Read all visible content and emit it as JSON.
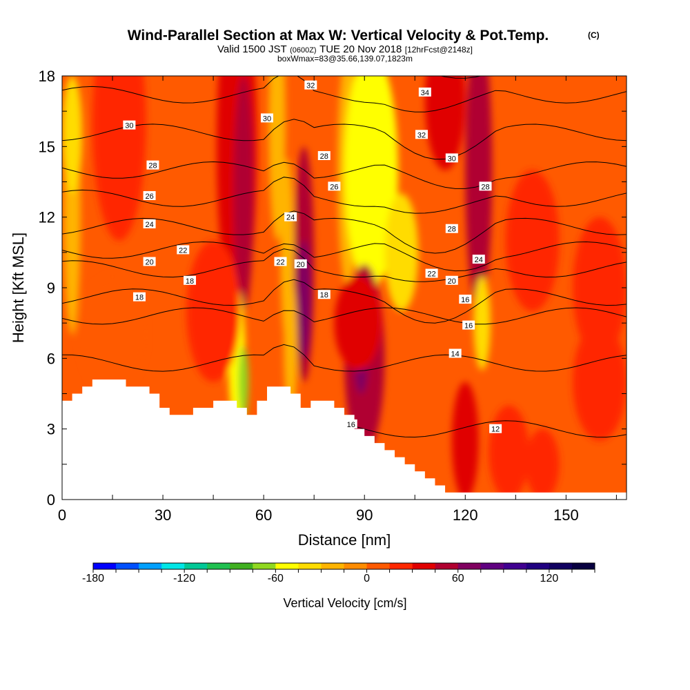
{
  "title": {
    "main": "Wind-Parallel Section at Max W: Vertical Velocity & Pot.Temp.",
    "copyright": "(C)",
    "valid_prefix": "Valid 1500 JST",
    "valid_utc": "(0600Z)",
    "valid_date": "TUE 20 Nov 2018",
    "valid_fcst": "[12hrFcst@2148z]",
    "box_info": "boxWmax=83@35.66,139.07,1823m"
  },
  "chart_data": {
    "type": "heatmap",
    "description_note": "",
    "xlabel": "Distance [nm]",
    "ylabel": "Height [Kft MSL]",
    "xlim": [
      0,
      168
    ],
    "ylim": [
      0,
      18
    ],
    "xticks": [
      0,
      30,
      60,
      90,
      120,
      150
    ],
    "yticks": [
      0,
      3,
      6,
      9,
      12,
      15,
      18
    ],
    "colorbar": {
      "label": "Vertical Velocity [cm/s]",
      "min": -180,
      "max": 150,
      "step": 15,
      "tick_labels": [
        -180,
        -120,
        -60,
        0,
        60,
        120
      ],
      "colors": [
        "#0000ff",
        "#0050ff",
        "#00a0ff",
        "#00e6e6",
        "#00c896",
        "#20c050",
        "#40b020",
        "#90d820",
        "#ffff00",
        "#ffdc00",
        "#ffb400",
        "#ff8c00",
        "#ff5a00",
        "#ff2800",
        "#e00000",
        "#b00030",
        "#800060",
        "#600080",
        "#400090",
        "#200080",
        "#100060",
        "#080040"
      ]
    },
    "terrain_kft": [
      [
        0,
        4.2
      ],
      [
        3,
        4.2
      ],
      [
        3,
        4.5
      ],
      [
        6,
        4.5
      ],
      [
        6,
        4.8
      ],
      [
        9,
        4.8
      ],
      [
        9,
        5.1
      ],
      [
        19,
        5.1
      ],
      [
        19,
        4.8
      ],
      [
        26,
        4.8
      ],
      [
        26,
        4.5
      ],
      [
        29,
        4.5
      ],
      [
        29,
        3.9
      ],
      [
        32,
        3.9
      ],
      [
        32,
        3.6
      ],
      [
        39,
        3.6
      ],
      [
        39,
        3.9
      ],
      [
        45,
        3.9
      ],
      [
        45,
        4.2
      ],
      [
        52,
        4.2
      ],
      [
        52,
        3.9
      ],
      [
        55,
        3.9
      ],
      [
        55,
        3.6
      ],
      [
        58,
        3.6
      ],
      [
        58,
        4.2
      ],
      [
        61,
        4.2
      ],
      [
        61,
        4.8
      ],
      [
        68,
        4.8
      ],
      [
        68,
        4.5
      ],
      [
        71,
        4.5
      ],
      [
        71,
        3.9
      ],
      [
        74,
        3.9
      ],
      [
        74,
        4.2
      ],
      [
        81,
        4.2
      ],
      [
        81,
        3.9
      ],
      [
        84,
        3.9
      ],
      [
        84,
        3.6
      ],
      [
        87,
        3.6
      ],
      [
        87,
        3.0
      ],
      [
        90,
        3.0
      ],
      [
        90,
        2.7
      ],
      [
        93,
        2.7
      ],
      [
        93,
        2.4
      ],
      [
        96,
        2.4
      ],
      [
        96,
        2.1
      ],
      [
        99,
        2.1
      ],
      [
        99,
        1.8
      ],
      [
        102,
        1.8
      ],
      [
        102,
        1.5
      ],
      [
        105,
        1.5
      ],
      [
        105,
        1.2
      ],
      [
        108,
        1.2
      ],
      [
        108,
        0.9
      ],
      [
        111,
        0.9
      ],
      [
        111,
        0.6
      ],
      [
        114,
        0.6
      ],
      [
        114,
        0.3
      ],
      [
        168,
        0.3
      ]
    ],
    "vertical_velocity_cells": [
      {
        "x": 3,
        "y": 12,
        "rx": 2.5,
        "ry": 5,
        "value": -30
      },
      {
        "x": 3,
        "y": 15.5,
        "rx": 3,
        "ry": 2.5,
        "value": -40
      },
      {
        "x": 17,
        "y": 16,
        "rx": 8,
        "ry": 5,
        "value": 15
      },
      {
        "x": 52,
        "y": 15,
        "rx": 6,
        "ry": 7,
        "value": 30
      },
      {
        "x": 54,
        "y": 13,
        "rx": 3,
        "ry": 5,
        "value": 45
      },
      {
        "x": 64,
        "y": 16,
        "rx": 2.5,
        "ry": 5,
        "value": -25
      },
      {
        "x": 67,
        "y": 10.5,
        "rx": 2,
        "ry": 4,
        "value": -30
      },
      {
        "x": 72,
        "y": 10,
        "rx": 3,
        "ry": 5,
        "value": 45
      },
      {
        "x": 72,
        "y": 8.5,
        "rx": 2,
        "ry": 2.5,
        "value": 60
      },
      {
        "x": 85,
        "y": 14,
        "rx": 3,
        "ry": 5,
        "value": -30
      },
      {
        "x": 92,
        "y": 14,
        "rx": 8,
        "ry": 5,
        "value": -50
      },
      {
        "x": 94,
        "y": 15,
        "rx": 4,
        "ry": 3.5,
        "value": -60
      },
      {
        "x": 101,
        "y": 10.5,
        "rx": 5,
        "ry": 2.5,
        "value": -35
      },
      {
        "x": 114,
        "y": 17,
        "rx": 6,
        "ry": 3,
        "value": 30
      },
      {
        "x": 124,
        "y": 14,
        "rx": 4,
        "ry": 6,
        "value": 45
      },
      {
        "x": 125,
        "y": 7.5,
        "rx": 2.5,
        "ry": 2,
        "value": -40
      },
      {
        "x": 52,
        "y": 6,
        "rx": 2.5,
        "ry": 3,
        "value": -50
      },
      {
        "x": 54,
        "y": 5,
        "rx": 1.5,
        "ry": 1.5,
        "value": -65
      },
      {
        "x": 68,
        "y": 6.5,
        "rx": 2,
        "ry": 3,
        "value": -30
      },
      {
        "x": 90,
        "y": 6,
        "rx": 6,
        "ry": 4,
        "value": 45
      },
      {
        "x": 89,
        "y": 5.8,
        "rx": 2,
        "ry": 1.3,
        "value": 70
      },
      {
        "x": 88,
        "y": 7.5,
        "rx": 7,
        "ry": 2,
        "value": 30
      },
      {
        "x": 15,
        "y": 7,
        "rx": 10,
        "ry": 2.5,
        "value": 5
      },
      {
        "x": 45,
        "y": 8,
        "rx": 8,
        "ry": 3,
        "value": 20
      },
      {
        "x": 120,
        "y": 2.5,
        "rx": 4,
        "ry": 2.5,
        "value": 35
      },
      {
        "x": 133,
        "y": 2,
        "rx": 6,
        "ry": 2,
        "value": 15
      },
      {
        "x": 143,
        "y": 1.5,
        "rx": 5,
        "ry": 1.5,
        "value": 20
      },
      {
        "x": 160,
        "y": 9,
        "rx": 8,
        "ry": 3,
        "value": 25
      },
      {
        "x": 160,
        "y": 5,
        "rx": 8,
        "ry": 2.5,
        "value": 15
      },
      {
        "x": 140,
        "y": 11,
        "rx": 8,
        "ry": 3,
        "value": 15
      }
    ],
    "potential_temperature_contours": {
      "levels": [
        12,
        14,
        16,
        18,
        20,
        22,
        24,
        26,
        28,
        30,
        32,
        34
      ],
      "labels": [
        {
          "text": "34",
          "x": 108,
          "y": 17.3
        },
        {
          "text": "32",
          "x": 74,
          "y": 17.6
        },
        {
          "text": "32",
          "x": 107,
          "y": 15.5
        },
        {
          "text": "30",
          "x": 20,
          "y": 15.9
        },
        {
          "text": "30",
          "x": 61,
          "y": 16.2
        },
        {
          "text": "30",
          "x": 116,
          "y": 14.5
        },
        {
          "text": "28",
          "x": 27,
          "y": 14.2
        },
        {
          "text": "28",
          "x": 78,
          "y": 14.6
        },
        {
          "text": "28",
          "x": 126,
          "y": 13.3
        },
        {
          "text": "28",
          "x": 116,
          "y": 11.5
        },
        {
          "text": "26",
          "x": 26,
          "y": 12.9
        },
        {
          "text": "26",
          "x": 81,
          "y": 13.3
        },
        {
          "text": "24",
          "x": 26,
          "y": 11.7
        },
        {
          "text": "24",
          "x": 68,
          "y": 12
        },
        {
          "text": "24",
          "x": 124,
          "y": 10.2
        },
        {
          "text": "22",
          "x": 36,
          "y": 10.6
        },
        {
          "text": "22",
          "x": 65,
          "y": 10.1
        },
        {
          "text": "22",
          "x": 110,
          "y": 9.6
        },
        {
          "text": "20",
          "x": 26,
          "y": 10.1
        },
        {
          "text": "20",
          "x": 71,
          "y": 10
        },
        {
          "text": "20",
          "x": 116,
          "y": 9.3
        },
        {
          "text": "18",
          "x": 38,
          "y": 9.3
        },
        {
          "text": "18",
          "x": 23,
          "y": 8.6
        },
        {
          "text": "18",
          "x": 78,
          "y": 8.7
        },
        {
          "text": "16",
          "x": 120,
          "y": 8.5
        },
        {
          "text": "16",
          "x": 121,
          "y": 7.4
        },
        {
          "text": "16",
          "x": 86,
          "y": 3.2
        },
        {
          "text": "14",
          "x": 117,
          "y": 6.2
        },
        {
          "text": "12",
          "x": 129,
          "y": 3
        }
      ]
    }
  }
}
